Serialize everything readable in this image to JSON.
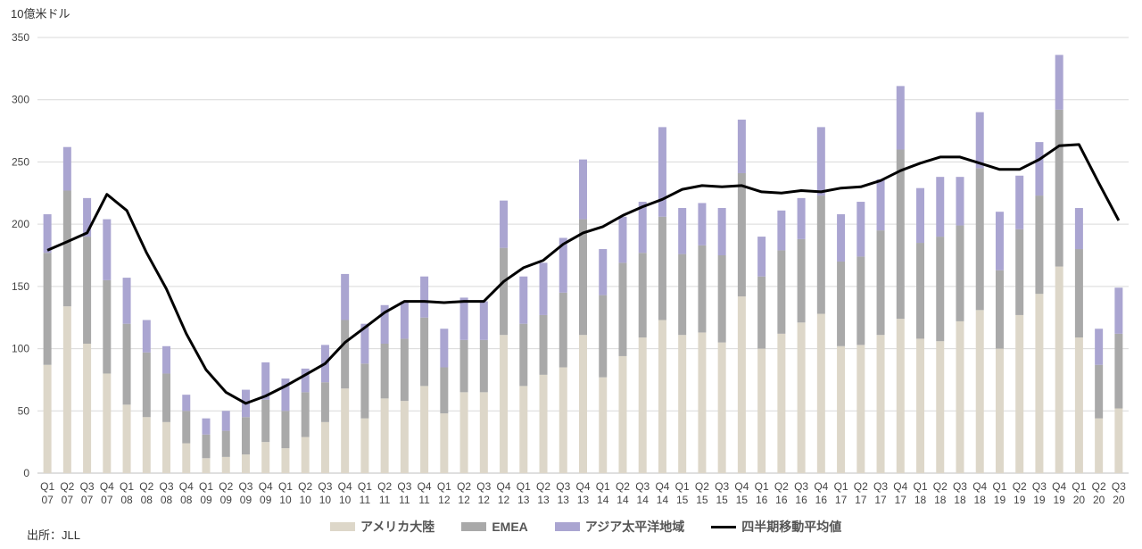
{
  "unit_label": "10億米ドル",
  "source_label": "出所：JLL",
  "colors": {
    "americas": "#ddd7c9",
    "emea": "#a9a9a9",
    "apac": "#aaa5d1",
    "moving_average": "#000000",
    "grid": "#d9d9d9"
  },
  "chart_data": {
    "type": "bar",
    "stacked": true,
    "ylim": [
      0,
      350
    ],
    "yticks": [
      0,
      50,
      100,
      150,
      200,
      250,
      300,
      350
    ],
    "grid": true,
    "legend_position": "bottom",
    "categories": [
      "Q1 07",
      "Q2 07",
      "Q3 07",
      "Q4 07",
      "Q1 08",
      "Q2 08",
      "Q3 08",
      "Q4 08",
      "Q1 09",
      "Q2 09",
      "Q3 09",
      "Q4 09",
      "Q1 10",
      "Q2 10",
      "Q3 10",
      "Q4 10",
      "Q1 11",
      "Q2 11",
      "Q3 11",
      "Q4 11",
      "Q1 12",
      "Q2 12",
      "Q3 12",
      "Q4 12",
      "Q1 13",
      "Q2 13",
      "Q3 13",
      "Q4 13",
      "Q1 14",
      "Q2 14",
      "Q3 14",
      "Q4 14",
      "Q1 15",
      "Q2 15",
      "Q3 15",
      "Q4 15",
      "Q1 16",
      "Q2 16",
      "Q3 16",
      "Q4 16",
      "Q1 17",
      "Q2 17",
      "Q3 17",
      "Q4 17",
      "Q1 18",
      "Q2 18",
      "Q3 18",
      "Q4 18",
      "Q1 19",
      "Q2 19",
      "Q3 19",
      "Q4 19",
      "Q1 20",
      "Q2 20",
      "Q3 20"
    ],
    "series": [
      {
        "name": "アメリカ大陸",
        "kind": "bar",
        "values": [
          87,
          134,
          104,
          80,
          55,
          45,
          41,
          24,
          12,
          13,
          15,
          25,
          20,
          29,
          41,
          68,
          44,
          60,
          58,
          70,
          48,
          65,
          65,
          111,
          70,
          79,
          85,
          111,
          77,
          94,
          109,
          123,
          111,
          113,
          105,
          142,
          100,
          112,
          121,
          128,
          102,
          103,
          111,
          124,
          108,
          106,
          122,
          131,
          100,
          127,
          144,
          166,
          109,
          44,
          52
        ]
      },
      {
        "name": "EMEA",
        "kind": "bar",
        "values": [
          90,
          93,
          86,
          75,
          65,
          52,
          39,
          26,
          19,
          21,
          30,
          34,
          30,
          36,
          32,
          55,
          44,
          44,
          50,
          55,
          37,
          42,
          42,
          70,
          50,
          48,
          60,
          93,
          66,
          75,
          68,
          83,
          65,
          70,
          70,
          99,
          58,
          67,
          67,
          95,
          68,
          71,
          84,
          136,
          77,
          84,
          77,
          114,
          63,
          69,
          79,
          126,
          71,
          43,
          60
        ]
      },
      {
        "name": "アジア太平洋地域",
        "kind": "bar",
        "values": [
          31,
          35,
          31,
          49,
          37,
          26,
          22,
          13,
          13,
          16,
          22,
          30,
          26,
          19,
          30,
          37,
          32,
          31,
          30,
          33,
          31,
          34,
          31,
          38,
          38,
          42,
          44,
          48,
          37,
          37,
          41,
          72,
          37,
          34,
          38,
          43,
          32,
          32,
          33,
          55,
          38,
          44,
          41,
          51,
          44,
          48,
          39,
          45,
          47,
          43,
          43,
          44,
          33,
          29,
          37
        ]
      },
      {
        "name": "四半期移動平均値",
        "kind": "line",
        "values": [
          179,
          186,
          193,
          224,
          211,
          177,
          148,
          112,
          83,
          65,
          56,
          62,
          70,
          79,
          88,
          105,
          117,
          129,
          138,
          138,
          137,
          138,
          138,
          154,
          165,
          171,
          184,
          193,
          198,
          207,
          214,
          220,
          228,
          231,
          230,
          231,
          226,
          225,
          227,
          226,
          229,
          230,
          235,
          243,
          249,
          254,
          254,
          249,
          244,
          244,
          252,
          263,
          264,
          233,
          203
        ]
      }
    ]
  }
}
